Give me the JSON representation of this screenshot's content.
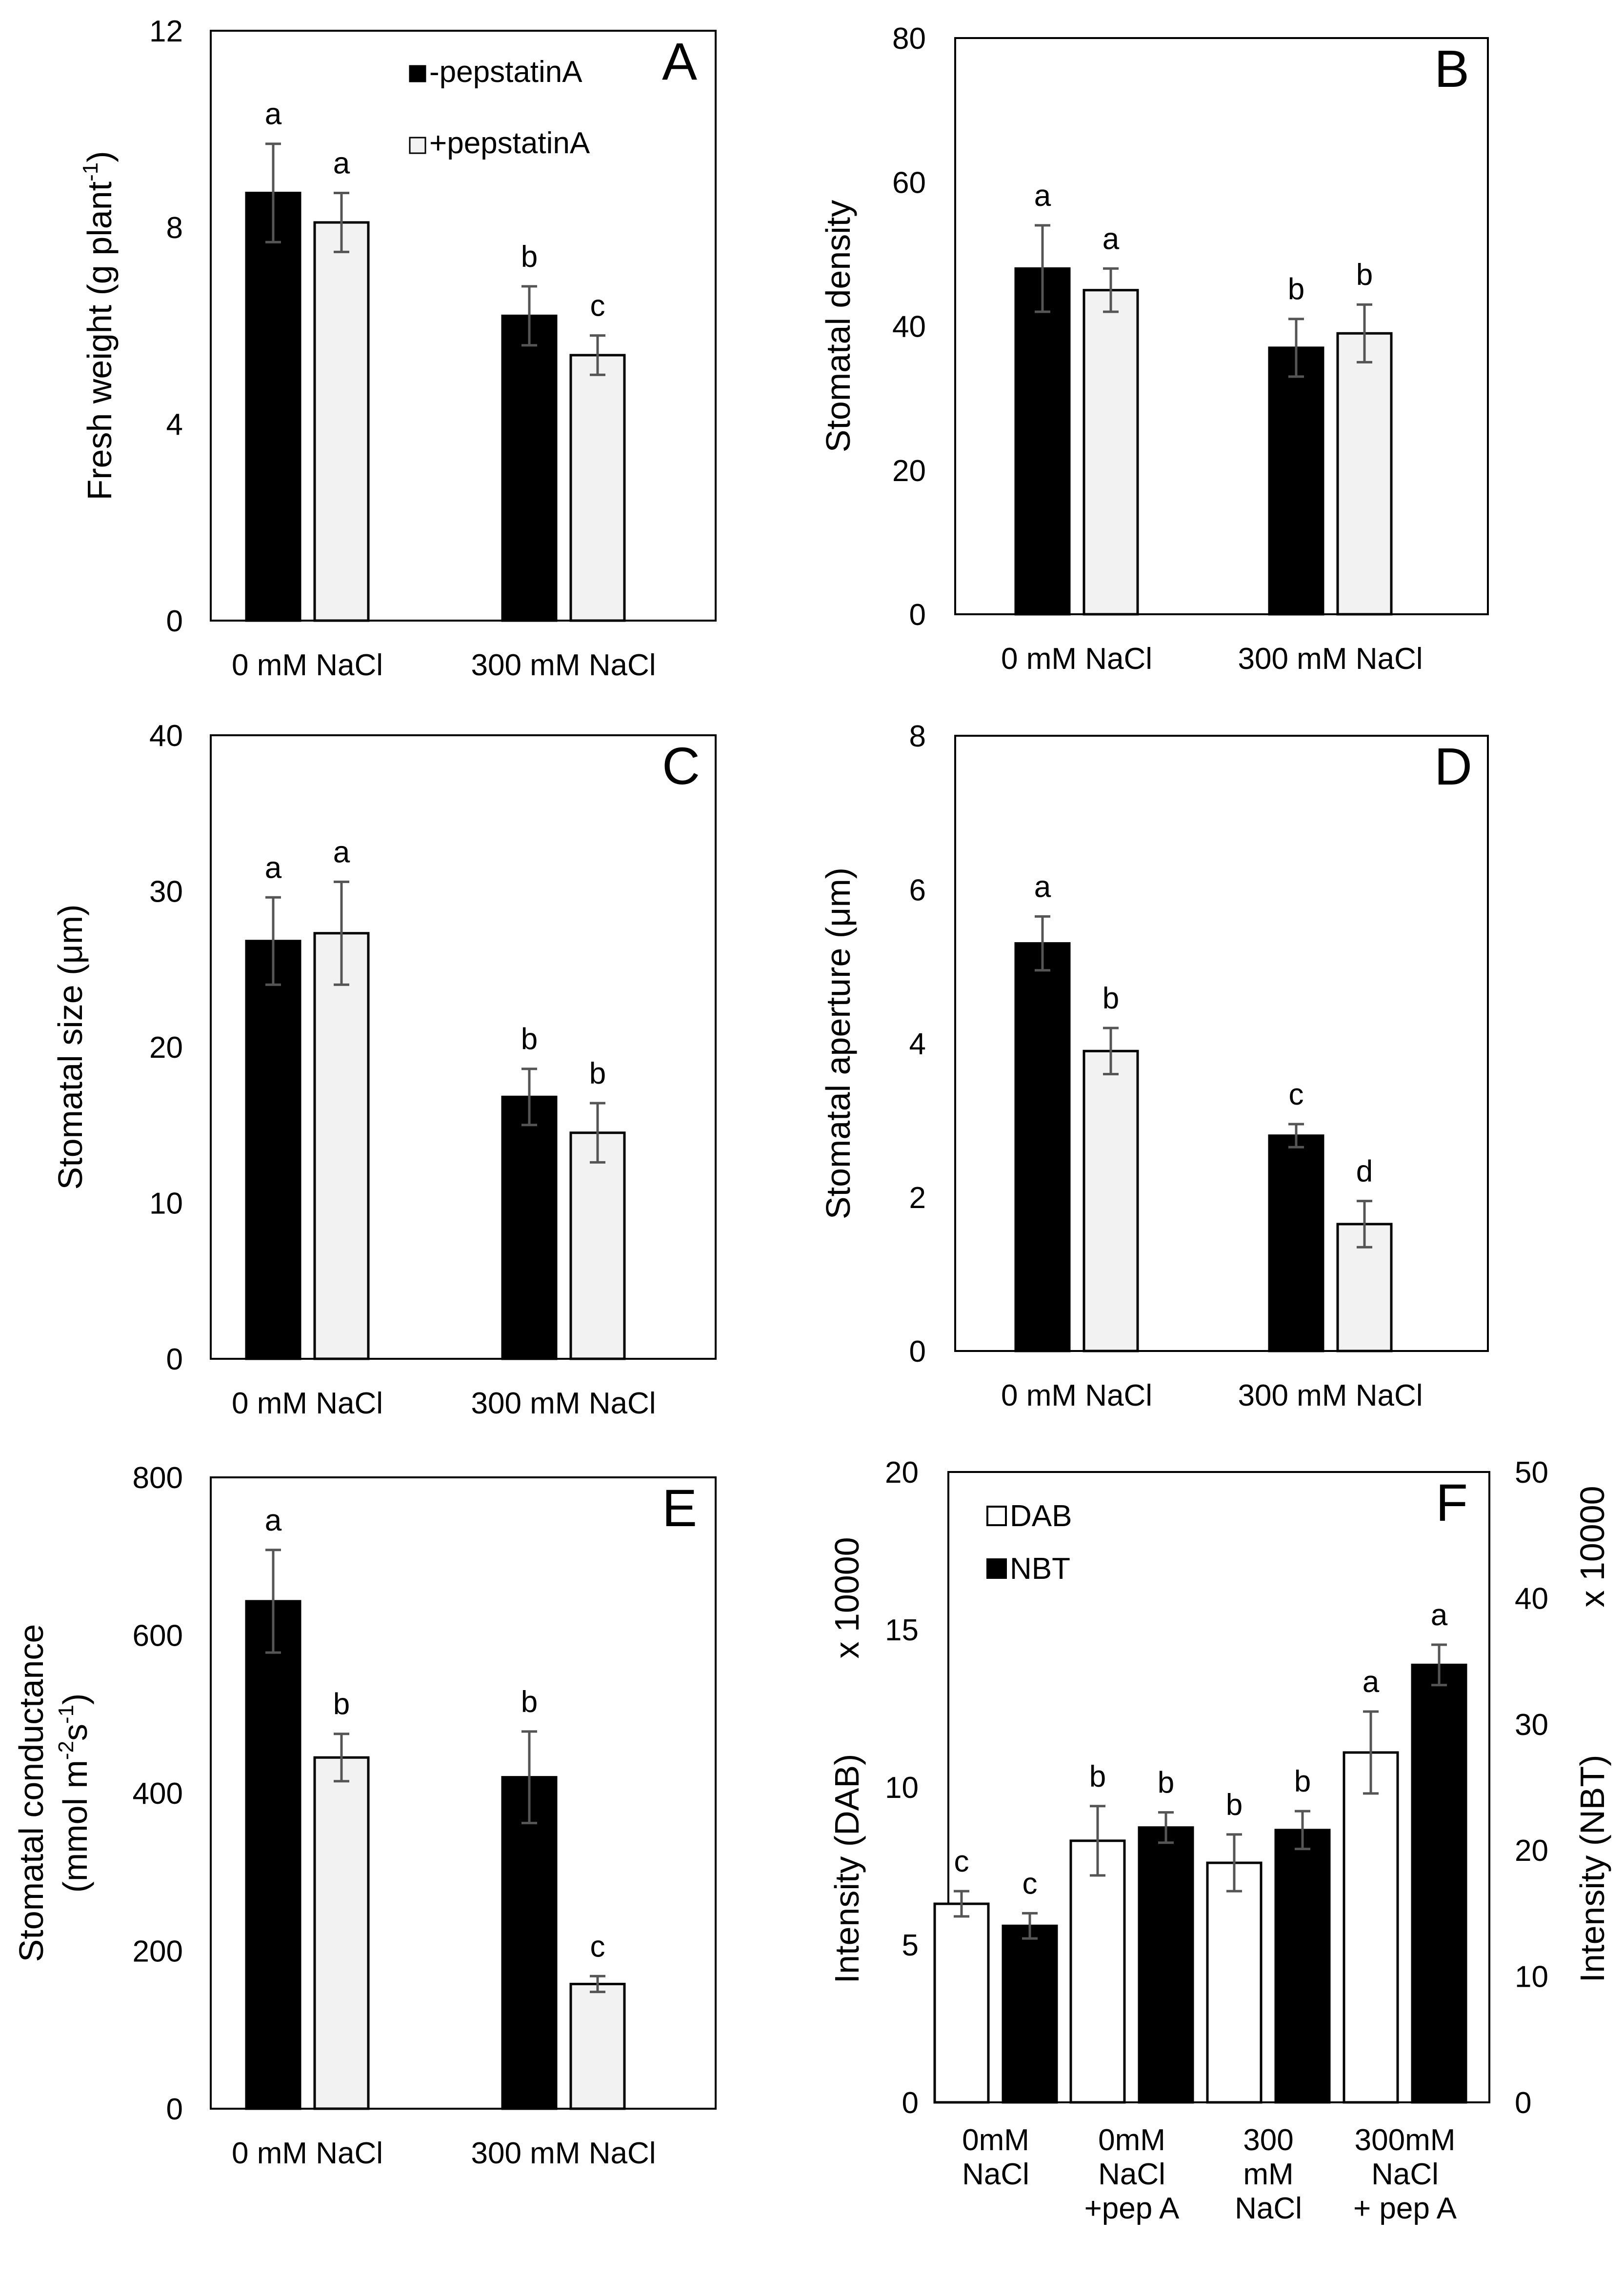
{
  "chart_data": [
    {
      "panel": "A",
      "type": "bar",
      "ylabel_main": "Fresh weight (g plant",
      "ylabel_sup": "-1",
      "ylabel_end": ")",
      "ylim": [
        0,
        12
      ],
      "yticks": [
        "0",
        "4",
        "8",
        "12"
      ],
      "categories": [
        "0 mM NaCl",
        "300 mM NaCl"
      ],
      "legend": [
        "-pepstatinA",
        "+pepstatinA"
      ],
      "series": [
        {
          "name": "-pepstatinA",
          "color": "#000000",
          "values": [
            8.7,
            6.2
          ],
          "errors": [
            1.0,
            0.6
          ],
          "letters": [
            "a",
            "b"
          ]
        },
        {
          "name": "+pepstatinA",
          "color": "#f2f2f2",
          "values": [
            8.1,
            5.4
          ],
          "errors": [
            0.6,
            0.4
          ],
          "letters": [
            "a",
            "c"
          ]
        }
      ]
    },
    {
      "panel": "B",
      "type": "bar",
      "ylabel_main": "Stomatal density",
      "ylim": [
        0,
        80
      ],
      "yticks": [
        "0",
        "20",
        "40",
        "60",
        "80"
      ],
      "categories": [
        "0 mM NaCl",
        "300 mM NaCl"
      ],
      "series": [
        {
          "name": "-pepstatinA",
          "color": "#000000",
          "values": [
            48,
            37
          ],
          "errors": [
            6,
            4
          ],
          "letters": [
            "a",
            "b"
          ]
        },
        {
          "name": "+pepstatinA",
          "color": "#f2f2f2",
          "values": [
            45,
            39
          ],
          "errors": [
            3,
            4
          ],
          "letters": [
            "a",
            "b"
          ]
        }
      ]
    },
    {
      "panel": "C",
      "type": "bar",
      "ylabel_main": "Stomatal size (μm)",
      "ylim": [
        0,
        40
      ],
      "yticks": [
        "0",
        "10",
        "20",
        "30",
        "40"
      ],
      "categories": [
        "0 mM NaCl",
        "300 mM NaCl"
      ],
      "series": [
        {
          "name": "-pepstatinA",
          "color": "#000000",
          "values": [
            26.8,
            16.8
          ],
          "errors": [
            2.8,
            1.8
          ],
          "letters": [
            "a",
            "b"
          ]
        },
        {
          "name": "+pepstatinA",
          "color": "#f2f2f2",
          "values": [
            27.3,
            14.5
          ],
          "errors": [
            3.3,
            1.9
          ],
          "letters": [
            "a",
            "b"
          ]
        }
      ]
    },
    {
      "panel": "D",
      "type": "bar",
      "ylabel_main": "Stomatal aperture (μm)",
      "ylim": [
        0,
        8
      ],
      "yticks": [
        "0",
        "2",
        "4",
        "6",
        "8"
      ],
      "categories": [
        "0 mM NaCl",
        "300 mM NaCl"
      ],
      "series": [
        {
          "name": "-pepstatinA",
          "color": "#000000",
          "values": [
            5.3,
            2.8
          ],
          "errors": [
            0.35,
            0.15
          ],
          "letters": [
            "a",
            "c"
          ]
        },
        {
          "name": "+pepstatinA",
          "color": "#f2f2f2",
          "values": [
            3.9,
            1.65
          ],
          "errors": [
            0.3,
            0.3
          ],
          "letters": [
            "b",
            "d"
          ]
        }
      ]
    },
    {
      "panel": "E",
      "type": "bar",
      "ylabel_line1": "Stomatal conductance",
      "ylabel_line2_a": "(mmol m",
      "ylabel_line2_sup1": "-2",
      "ylabel_line2_b": "s",
      "ylabel_line2_sup2": "-1",
      "ylabel_line2_c": ")",
      "ylim": [
        0,
        800
      ],
      "yticks": [
        "0",
        "200",
        "400",
        "600",
        "800"
      ],
      "categories": [
        "0 mM NaCl",
        "300 mM NaCl"
      ],
      "series": [
        {
          "name": "-pepstatinA",
          "color": "#000000",
          "values": [
            643,
            420
          ],
          "errors": [
            65,
            58
          ],
          "letters": [
            "a",
            "b"
          ]
        },
        {
          "name": "+pepstatinA",
          "color": "#f2f2f2",
          "values": [
            445,
            158
          ],
          "errors": [
            30,
            10
          ],
          "letters": [
            "b",
            "c"
          ]
        }
      ]
    },
    {
      "panel": "F",
      "type": "bar",
      "ylabel_left": "Intensity (DAB)",
      "ylabel_right": "Intensity (NBT)",
      "scale_left": "x 10000",
      "scale_right": "x 10000",
      "ylim": [
        0,
        20
      ],
      "yticks": [
        "0",
        "5",
        "10",
        "15",
        "20"
      ],
      "ylim_right": [
        0,
        50
      ],
      "yticks_right": [
        "0",
        "10",
        "20",
        "30",
        "40",
        "50"
      ],
      "categories": [
        [
          "0mM",
          "NaCl"
        ],
        [
          "0mM",
          "NaCl",
          "+pep A"
        ],
        [
          "300",
          "mM",
          "NaCl"
        ],
        [
          "300mM",
          "NaCl",
          "+ pep A"
        ]
      ],
      "legend": [
        "DAB",
        "NBT"
      ],
      "series": [
        {
          "name": "DAB",
          "axis": "left",
          "color": "#ffffff",
          "values": [
            6.3,
            8.3,
            7.6,
            11.1
          ],
          "errors": [
            0.4,
            1.1,
            0.9,
            1.3
          ],
          "letters": [
            "c",
            "b",
            "b",
            "a"
          ]
        },
        {
          "name": "NBT",
          "axis": "right",
          "color": "#000000",
          "values": [
            14,
            21.8,
            21.6,
            34.7
          ],
          "errors": [
            1.0,
            1.2,
            1.5,
            1.6
          ],
          "letters": [
            "c",
            "b",
            "b",
            "a"
          ]
        }
      ]
    }
  ]
}
